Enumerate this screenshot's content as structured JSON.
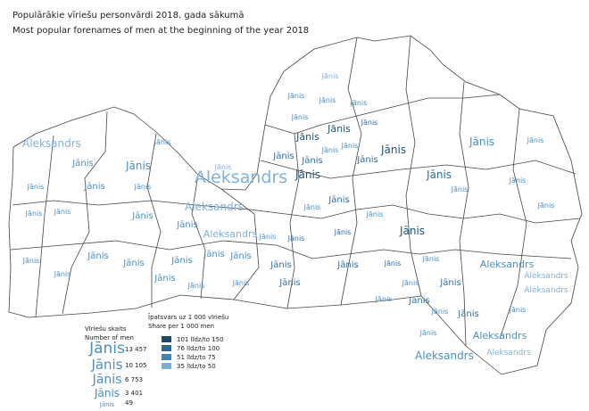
{
  "header": {
    "title_lv": "Populārākie vīriešu personvārdi 2018. gada sākumā",
    "title_en": "Most popular forenames of men at the beginning of the year 2018"
  },
  "map": {
    "labels": [
      {
        "text": "Jānis",
        "color": "#7fb2d9"
      },
      {
        "text": "Jānis",
        "color": "#4b8fc0"
      },
      {
        "text": "Jānis",
        "color": "#4b8fc0"
      },
      {
        "text": "Jānis",
        "color": "#4b8fc0"
      },
      {
        "text": "Jānis",
        "color": "#4b8fc0"
      },
      {
        "text": "Jānis",
        "color": "#1c5276"
      },
      {
        "text": "Jānis",
        "color": "#2f6f9e"
      },
      {
        "text": "Jānis",
        "color": "#1c5276"
      },
      {
        "text": "Jānis",
        "color": "#4b8fc0"
      },
      {
        "text": "Jānis",
        "color": "#1c5276"
      },
      {
        "text": "Jānis",
        "color": "#4b8fc0"
      },
      {
        "text": "Jānis",
        "color": "#4b8fc0"
      },
      {
        "text": "Jānis",
        "color": "#4b8fc0"
      },
      {
        "text": "Jānis",
        "color": "#4b8fc0"
      },
      {
        "text": "Aleksandrs",
        "color": "#7fb2d9"
      },
      {
        "text": "Jānis",
        "color": "#4b8fc0"
      },
      {
        "text": "Jānis",
        "color": "#4b8fc0"
      },
      {
        "text": "Aleksandrs",
        "color": "#7fb2d9"
      },
      {
        "text": "Jānis",
        "color": "#7fb2d9"
      },
      {
        "text": "Jānis",
        "color": "#2f6f9e"
      },
      {
        "text": "Jānis",
        "color": "#2f6f9e"
      },
      {
        "text": "Jānis",
        "color": "#2f6f9e"
      },
      {
        "text": "Jānis",
        "color": "#2f6f9e"
      },
      {
        "text": "Jānis",
        "color": "#4b8fc0"
      },
      {
        "text": "Jānis",
        "color": "#4b8fc0"
      },
      {
        "text": "Jānis",
        "color": "#4b8fc0"
      },
      {
        "text": "Jānis",
        "color": "#4b8fc0"
      },
      {
        "text": "Aleksandrs",
        "color": "#7fb2d9"
      },
      {
        "text": "Aleksandrs",
        "color": "#7fb2d9"
      },
      {
        "text": "Jānis",
        "color": "#1c5276"
      },
      {
        "text": "Jānis",
        "color": "#2f6f9e"
      },
      {
        "text": "Jānis",
        "color": "#4b8fc0"
      },
      {
        "text": "Jānis",
        "color": "#1c5276"
      },
      {
        "text": "Jānis",
        "color": "#4b8fc0"
      },
      {
        "text": "Jānis",
        "color": "#4b8fc0"
      },
      {
        "text": "Jānis",
        "color": "#4b8fc0"
      },
      {
        "text": "Jānis",
        "color": "#4b8fc0"
      },
      {
        "text": "Jānis",
        "color": "#4b8fc0"
      },
      {
        "text": "Jānis",
        "color": "#2f6f9e"
      },
      {
        "text": "Jānis",
        "color": "#2f6f9e"
      },
      {
        "text": "Jānis",
        "color": "#4b8fc0"
      },
      {
        "text": "Jānis",
        "color": "#4b8fc0"
      },
      {
        "text": "Jānis",
        "color": "#4b8fc0"
      },
      {
        "text": "Jānis",
        "color": "#4b8fc0"
      },
      {
        "text": "Jānis",
        "color": "#4b8fc0"
      },
      {
        "text": "Jānis",
        "color": "#4b8fc0"
      },
      {
        "text": "Jānis",
        "color": "#4b8fc0"
      },
      {
        "text": "Jānis",
        "color": "#4b8fc0"
      },
      {
        "text": "Jānis",
        "color": "#4b8fc0"
      },
      {
        "text": "Jānis",
        "color": "#2f6f9e"
      },
      {
        "text": "Jānis",
        "color": "#2f6f9e"
      },
      {
        "text": "Jānis",
        "color": "#2f6f9e"
      },
      {
        "text": "Jānis",
        "color": "#4b8fc0"
      },
      {
        "text": "Aleksandrs",
        "color": "#4b8fc0"
      },
      {
        "text": "Aleksandrs",
        "color": "#7fb2d9"
      },
      {
        "text": "Aleksandrs",
        "color": "#7fb2d9"
      },
      {
        "text": "Jānis",
        "color": "#4b8fc0"
      },
      {
        "text": "Jānis",
        "color": "#4b8fc0"
      },
      {
        "text": "Jānis",
        "color": "#4b8fc0"
      },
      {
        "text": "Jānis",
        "color": "#4b8fc0"
      },
      {
        "text": "Jānis",
        "color": "#2f6f9e"
      },
      {
        "text": "Jānis",
        "color": "#4b8fc0"
      },
      {
        "text": "Jānis",
        "color": "#2f6f9e"
      },
      {
        "text": "Jānis",
        "color": "#4b8fc0"
      },
      {
        "text": "Jānis",
        "color": "#2f6f9e"
      },
      {
        "text": "Jānis",
        "color": "#4b8fc0"
      },
      {
        "text": "Jānis",
        "color": "#2f6f9e"
      },
      {
        "text": "Jānis",
        "color": "#4b8fc0"
      },
      {
        "text": "Aleksandrs",
        "color": "#4b8fc0"
      },
      {
        "text": "Aleksandrs",
        "color": "#4b8fc0"
      },
      {
        "text": "Aleksandrs",
        "color": "#7fb2d9"
      },
      {
        "text": "Jānis",
        "color": "#4b8fc0"
      }
    ]
  },
  "legend_size": {
    "title_lv": "Vīriešu skaits",
    "title_en": "Number of men",
    "sample": "Jānis",
    "items": [
      "13 457",
      "10 105",
      "6 753",
      "3 401",
      "49"
    ]
  },
  "legend_share": {
    "title_lv": "Īpatsvars uz 1 000 vīriešu",
    "title_en": "Share per 1 000 men",
    "items": [
      {
        "label": "101 līdz/to 150",
        "color": "#1c4a66"
      },
      {
        "label": "76 līdz/to 100",
        "color": "#2c6a92"
      },
      {
        "label": "51 līdz/to 75",
        "color": "#3e86b8"
      },
      {
        "label": "35 līdz/to 50",
        "color": "#79aed6"
      }
    ]
  }
}
